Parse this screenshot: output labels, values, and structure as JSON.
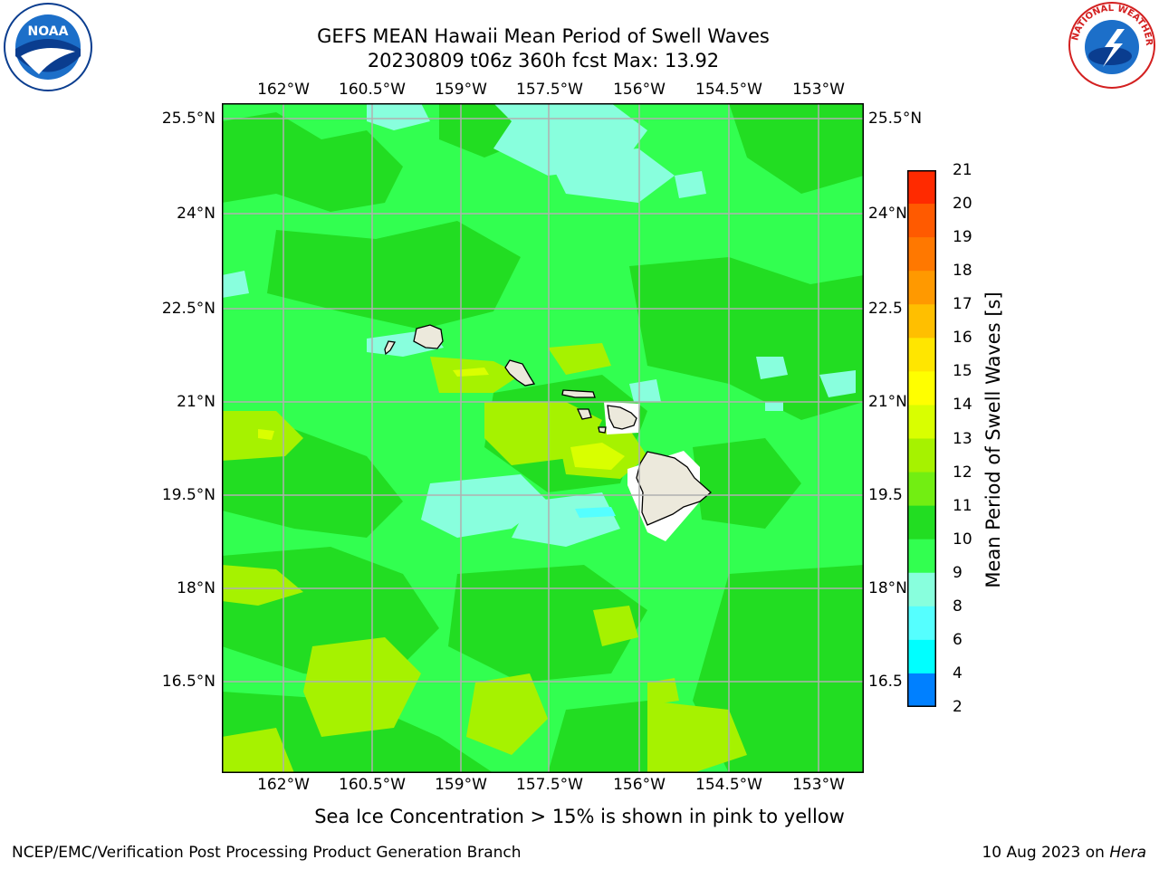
{
  "title": {
    "line1": "GEFS MEAN Hawaii Mean Period of Swell Waves",
    "line2": "20230809 t06z 360h fcst   Max: 13.92"
  },
  "logos": {
    "left": {
      "icon": "noaa-logo",
      "text": "NOAA"
    },
    "right": {
      "icon": "nws-logo",
      "text": "NATIONAL WEATHER SERVICE"
    }
  },
  "map": {
    "lon_ticks": [
      "162°W",
      "160.5°W",
      "159°W",
      "157.5°W",
      "156°W",
      "154.5°W",
      "153°W"
    ],
    "lat_ticks": [
      "25.5°N",
      "24°N",
      "22.5°N",
      "21°N",
      "19.5°N",
      "18°N",
      "16.5°N"
    ],
    "lat_ticks_right": [
      "25.5°N",
      "24°N",
      "22.5",
      "21°N",
      "19.5",
      "18°N",
      "16.5"
    ],
    "land_color": "#ece9dc",
    "grid_color": "#b0b0b0"
  },
  "colorbar": {
    "title": "Mean Period of Swell Waves [s]",
    "labels": [
      "21",
      "20",
      "19",
      "18",
      "17",
      "16",
      "15",
      "14",
      "13",
      "12",
      "11",
      "10",
      "9",
      "8",
      "6",
      "4",
      "2"
    ],
    "colors": [
      "#ff0000",
      "#ff2a00",
      "#ff5a00",
      "#ff7800",
      "#ff9900",
      "#ffbf00",
      "#ffe600",
      "#ffff00",
      "#d9ff00",
      "#a6f200",
      "#72ee12",
      "#22dd22",
      "#32ff50",
      "#88ffdd",
      "#55ffff",
      "#00ffff",
      "#0080ff",
      "#0000ff"
    ]
  },
  "notes": {
    "ice": "Sea Ice Concentration > 15% is shown in pink to yellow"
  },
  "footer": {
    "left": "NCEP/EMC/Verification Post Processing Product Generation Branch",
    "right_date": "10 Aug 2023 on ",
    "right_host": "Hera"
  }
}
